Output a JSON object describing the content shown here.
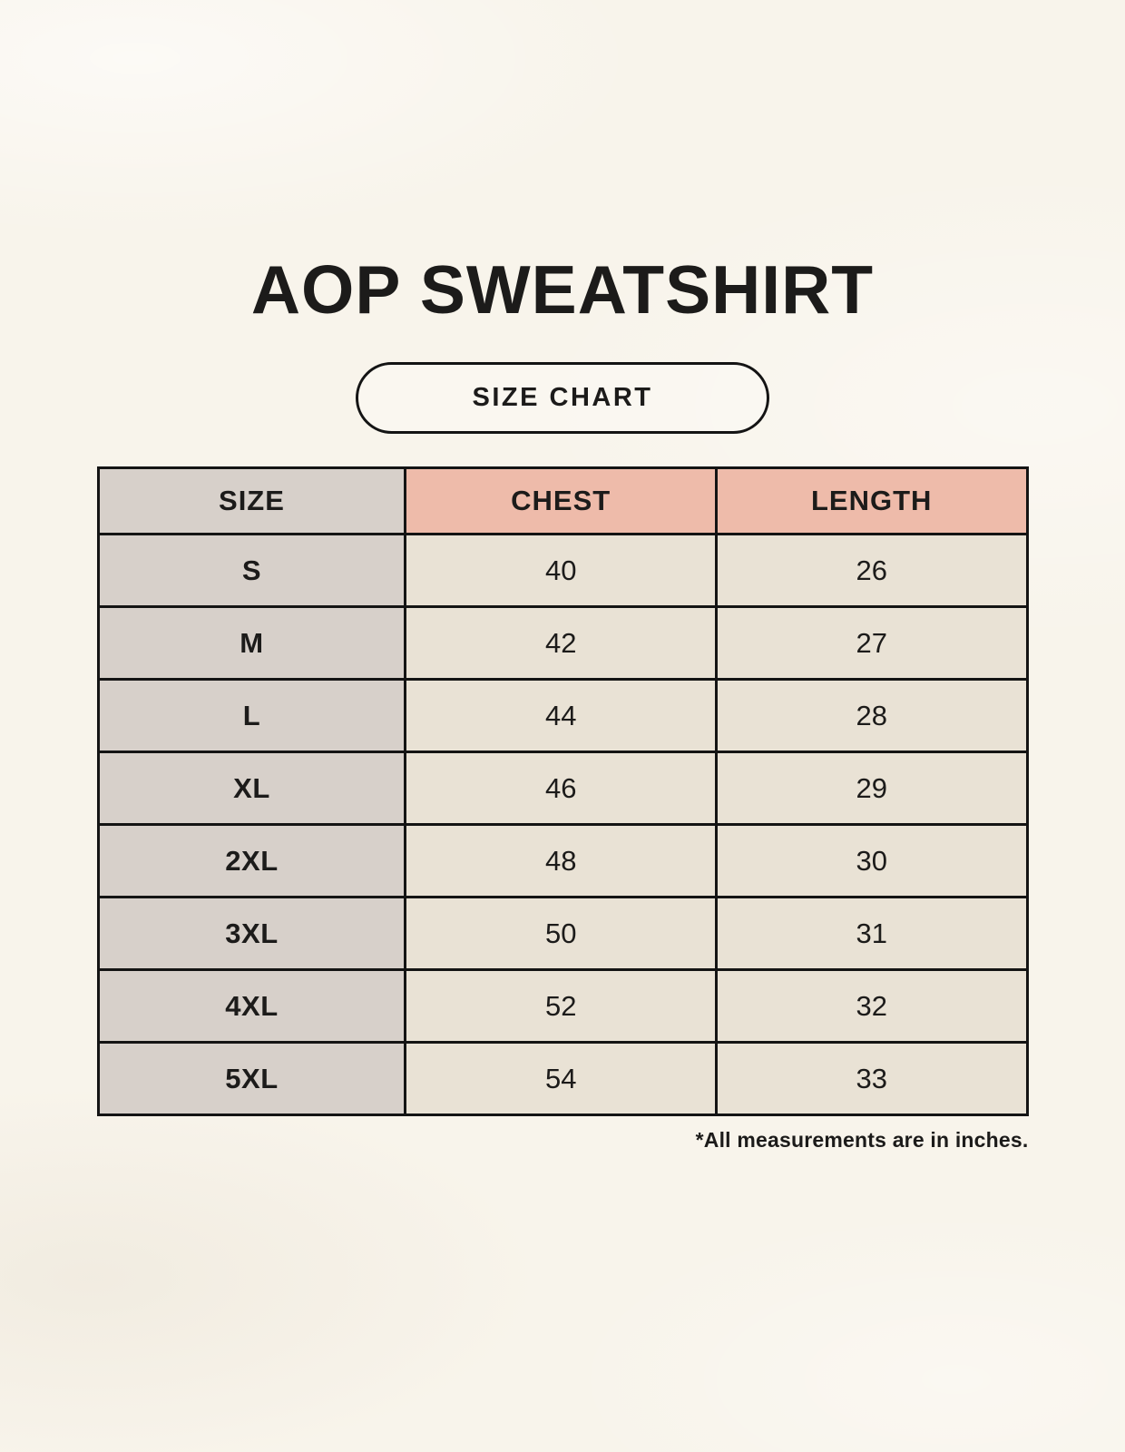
{
  "page": {
    "title": "AOP SWEATSHIRT",
    "badge_label": "SIZE CHART",
    "footnote": "*All measurements are in inches."
  },
  "table": {
    "columns": [
      "SIZE",
      "CHEST",
      "LENGTH"
    ],
    "rows": [
      {
        "size": "S",
        "chest": "40",
        "length": "26"
      },
      {
        "size": "M",
        "chest": "42",
        "length": "27"
      },
      {
        "size": "L",
        "chest": "44",
        "length": "28"
      },
      {
        "size": "XL",
        "chest": "46",
        "length": "29"
      },
      {
        "size": "2XL",
        "chest": "48",
        "length": "30"
      },
      {
        "size": "3XL",
        "chest": "50",
        "length": "31"
      },
      {
        "size": "4XL",
        "chest": "52",
        "length": "32"
      },
      {
        "size": "5XL",
        "chest": "54",
        "length": "33"
      }
    ]
  },
  "colors": {
    "background": "#f8f4eb",
    "header_size_bg": "#d7d0ca",
    "header_measure_bg": "#eebbaa",
    "cell_bg": "#e9e2d5",
    "border": "#141414",
    "text": "#1c1b1a"
  },
  "chart_data": {
    "type": "table",
    "title": "AOP SWEATSHIRT",
    "subtitle": "SIZE CHART",
    "columns": [
      "SIZE",
      "CHEST",
      "LENGTH"
    ],
    "rows": [
      [
        "S",
        40,
        26
      ],
      [
        "M",
        42,
        27
      ],
      [
        "L",
        44,
        28
      ],
      [
        "XL",
        46,
        29
      ],
      [
        "2XL",
        48,
        30
      ],
      [
        "3XL",
        50,
        31
      ],
      [
        "4XL",
        52,
        32
      ],
      [
        "5XL",
        54,
        33
      ]
    ],
    "annotations": [
      "*All measurements are in inches."
    ]
  }
}
